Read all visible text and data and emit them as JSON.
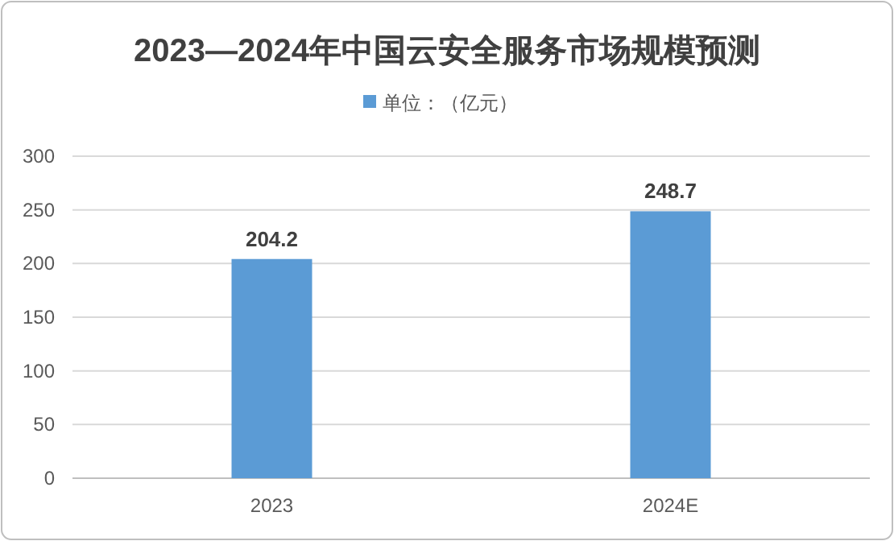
{
  "chart_data": {
    "type": "bar",
    "title": "2023—2024年中国云安全服务市场规模预测",
    "categories": [
      "2023",
      "2024E"
    ],
    "series": [
      {
        "name": "单位：（亿元）",
        "color": "#5b9bd5",
        "values": [
          204.2,
          248.7
        ]
      }
    ],
    "ylim": [
      0,
      300
    ],
    "yticks": [
      0,
      50,
      100,
      150,
      200,
      250,
      300
    ],
    "grid": "y",
    "legend": "top",
    "data_labels": true
  }
}
